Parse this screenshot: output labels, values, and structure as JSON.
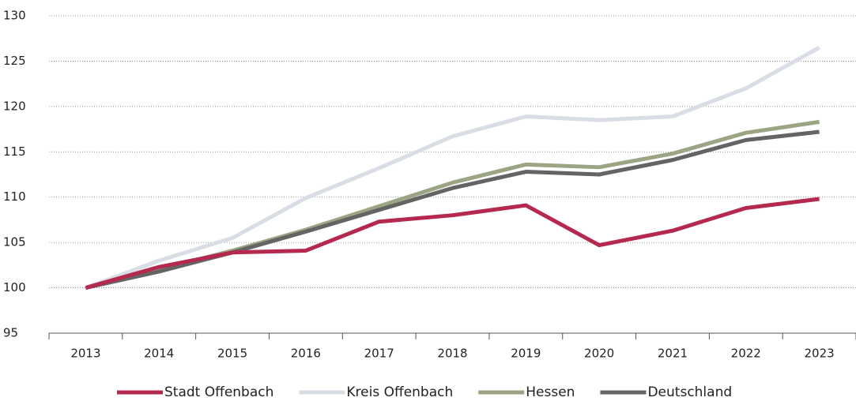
{
  "chart_data": {
    "type": "line",
    "categories": [
      "2013",
      "2014",
      "2015",
      "2016",
      "2017",
      "2018",
      "2019",
      "2020",
      "2021",
      "2022",
      "2023"
    ],
    "series": [
      {
        "name": "Stadt Offenbach",
        "color": "#b5294e",
        "values": [
          100,
          102.3,
          103.9,
          104.1,
          107.3,
          108.0,
          109.1,
          104.7,
          106.3,
          108.8,
          109.8
        ]
      },
      {
        "name": "Kreis Offenbach",
        "color": "#d9dde5",
        "values": [
          100,
          103.0,
          105.5,
          109.9,
          113.2,
          116.7,
          118.9,
          118.5,
          118.9,
          122.0,
          126.5
        ]
      },
      {
        "name": "Hessen",
        "color": "#9ba583",
        "values": [
          100,
          102.0,
          104.1,
          106.4,
          109.0,
          111.6,
          113.6,
          113.3,
          114.8,
          117.1,
          118.3
        ]
      },
      {
        "name": "Deutschland",
        "color": "#646464",
        "values": [
          100,
          101.8,
          103.9,
          106.2,
          108.6,
          111.0,
          112.8,
          112.5,
          114.1,
          116.3,
          117.2
        ]
      }
    ],
    "ylim": [
      95,
      130
    ],
    "yticks": [
      95,
      100,
      105,
      110,
      115,
      120,
      125,
      130
    ],
    "grid": true,
    "legend": "bottom"
  }
}
